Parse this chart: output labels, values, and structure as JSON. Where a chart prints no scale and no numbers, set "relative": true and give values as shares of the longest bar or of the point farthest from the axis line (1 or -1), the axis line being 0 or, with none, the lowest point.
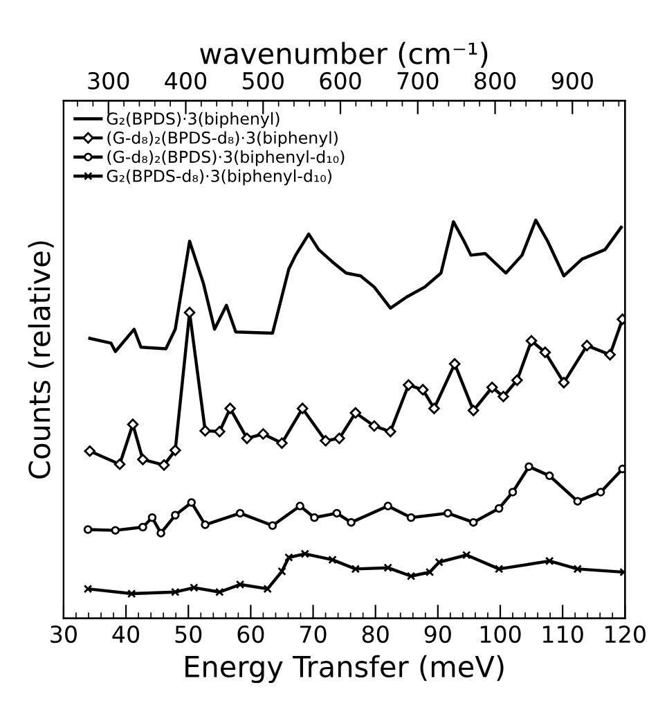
{
  "chart_data": {
    "type": "line",
    "relative": true,
    "xlabel": "Energy Transfer (meV)",
    "ylabel": "Counts (relative)",
    "x2label": "wavenumber (cm⁻¹)",
    "xlim": [
      30,
      120
    ],
    "xticks": [
      30,
      40,
      50,
      60,
      70,
      80,
      90,
      100,
      110,
      120
    ],
    "x2lim": [
      242,
      968
    ],
    "x2ticks": [
      300,
      400,
      500,
      600,
      700,
      800,
      900
    ],
    "legend": "top left",
    "grid": false,
    "series": [
      {
        "name": "G₂(BPDS)·3(biphenyl)",
        "color": "#000000",
        "marker": "none",
        "x": [
          34.2,
          37.6,
          38.3,
          41.3,
          42.4,
          46.4,
          47.9,
          50.2,
          52.4,
          54.2,
          56.1,
          57.6,
          63.5,
          66.1,
          67.2,
          69.3,
          70.9,
          73.1,
          75.3,
          77.6,
          79.8,
          82.4,
          85.0,
          87.9,
          90.5,
          92.5,
          94.2,
          95.3,
          97.6,
          100.9,
          103.5,
          105.7,
          107.6,
          110.2,
          113.1,
          116.8,
          119.4
        ],
        "values": [
          0.703,
          0.691,
          0.67,
          0.726,
          0.681,
          0.677,
          0.726,
          0.947,
          0.842,
          0.726,
          0.786,
          0.719,
          0.716,
          0.877,
          0.912,
          0.965,
          0.926,
          0.895,
          0.867,
          0.86,
          0.832,
          0.779,
          0.807,
          0.832,
          0.867,
          0.996,
          0.947,
          0.912,
          0.916,
          0.867,
          0.912,
          1.0,
          0.947,
          0.86,
          0.902,
          0.926,
          0.982
        ]
      },
      {
        "name": "(G-d₈)₂(BPDS-d₈)·3(biphenyl)",
        "color": "#000000",
        "marker": "diamond",
        "x": [
          34.2,
          39.0,
          41.1,
          42.7,
          46.1,
          47.9,
          50.2,
          52.7,
          55.0,
          56.7,
          59.4,
          62.0,
          65.0,
          68.3,
          72.0,
          74.2,
          76.8,
          79.8,
          82.4,
          85.3,
          87.6,
          89.4,
          92.7,
          95.7,
          98.7,
          100.5,
          102.7,
          105.0,
          107.2,
          110.2,
          113.9,
          117.6,
          119.6
        ],
        "values": [
          0.42,
          0.387,
          0.487,
          0.399,
          0.385,
          0.422,
          0.768,
          0.471,
          0.469,
          0.527,
          0.452,
          0.463,
          0.44,
          0.527,
          0.446,
          0.452,
          0.516,
          0.483,
          0.469,
          0.586,
          0.574,
          0.527,
          0.639,
          0.522,
          0.58,
          0.557,
          0.598,
          0.697,
          0.668,
          0.592,
          0.685,
          0.662,
          0.751
        ]
      },
      {
        "name": "(G-d₈)₂(BPDS)·3(biphenyl-d₁₀)",
        "color": "#000000",
        "marker": "circle",
        "x": [
          33.9,
          38.3,
          42.7,
          44.2,
          45.6,
          47.9,
          50.5,
          52.7,
          58.3,
          63.5,
          67.9,
          70.2,
          73.8,
          76.1,
          82.0,
          85.7,
          91.6,
          95.7,
          99.8,
          102.0,
          104.6,
          107.9,
          112.4,
          116.1,
          119.6
        ],
        "values": [
          0.223,
          0.221,
          0.229,
          0.253,
          0.214,
          0.259,
          0.291,
          0.235,
          0.264,
          0.233,
          0.282,
          0.253,
          0.264,
          0.241,
          0.282,
          0.253,
          0.264,
          0.241,
          0.276,
          0.317,
          0.381,
          0.358,
          0.294,
          0.317,
          0.375
        ]
      },
      {
        "name": "G₂(BPDS-d₈)·3(biphenyl-d₁₀)",
        "color": "#000000",
        "marker": "cross",
        "x": [
          33.9,
          40.9,
          47.9,
          50.9,
          55.0,
          58.3,
          62.7,
          65.0,
          66.1,
          68.7,
          73.1,
          76.8,
          82.0,
          85.7,
          88.7,
          90.2,
          94.6,
          99.8,
          107.9,
          112.4,
          119.8
        ],
        "values": [
          0.074,
          0.062,
          0.066,
          0.077,
          0.066,
          0.085,
          0.074,
          0.118,
          0.153,
          0.162,
          0.147,
          0.124,
          0.127,
          0.106,
          0.116,
          0.141,
          0.159,
          0.124,
          0.144,
          0.124,
          0.116
        ]
      }
    ]
  }
}
